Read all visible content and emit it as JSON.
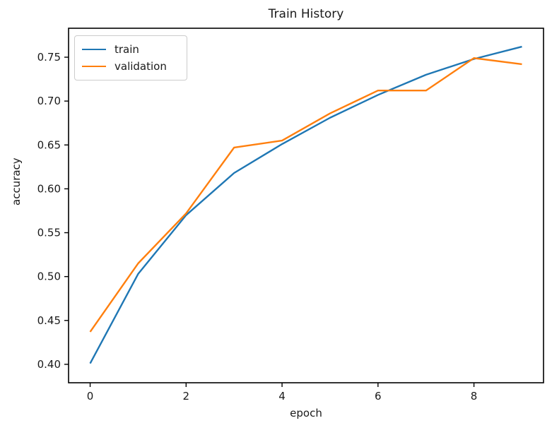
{
  "figure": {
    "background_color": "#ffffff",
    "text_color": "#1a1a1a",
    "spine_color": "#000000"
  },
  "chart_data": {
    "type": "line",
    "title": "Train History",
    "xlabel": "epoch",
    "ylabel": "accuracy",
    "x": [
      0,
      1,
      2,
      3,
      4,
      5,
      6,
      7,
      8,
      9
    ],
    "series": [
      {
        "name": "train",
        "color": "#1f77b4",
        "values": [
          0.401,
          0.503,
          0.57,
          0.618,
          0.651,
          0.681,
          0.707,
          0.73,
          0.748,
          0.762
        ]
      },
      {
        "name": "validation",
        "color": "#ff7f0e",
        "values": [
          0.437,
          0.515,
          0.572,
          0.647,
          0.655,
          0.686,
          0.712,
          0.712,
          0.749,
          0.742
        ]
      }
    ],
    "xlim": [
      -0.45,
      9.45
    ],
    "ylim": [
      0.379,
      0.783
    ],
    "xticks": [
      "0",
      "2",
      "4",
      "6",
      "8"
    ],
    "yticks": [
      "0.40",
      "0.45",
      "0.50",
      "0.55",
      "0.60",
      "0.65",
      "0.70",
      "0.75"
    ],
    "grid": false,
    "legend_position": "upper left",
    "legend_entries": [
      "train",
      "validation"
    ]
  }
}
